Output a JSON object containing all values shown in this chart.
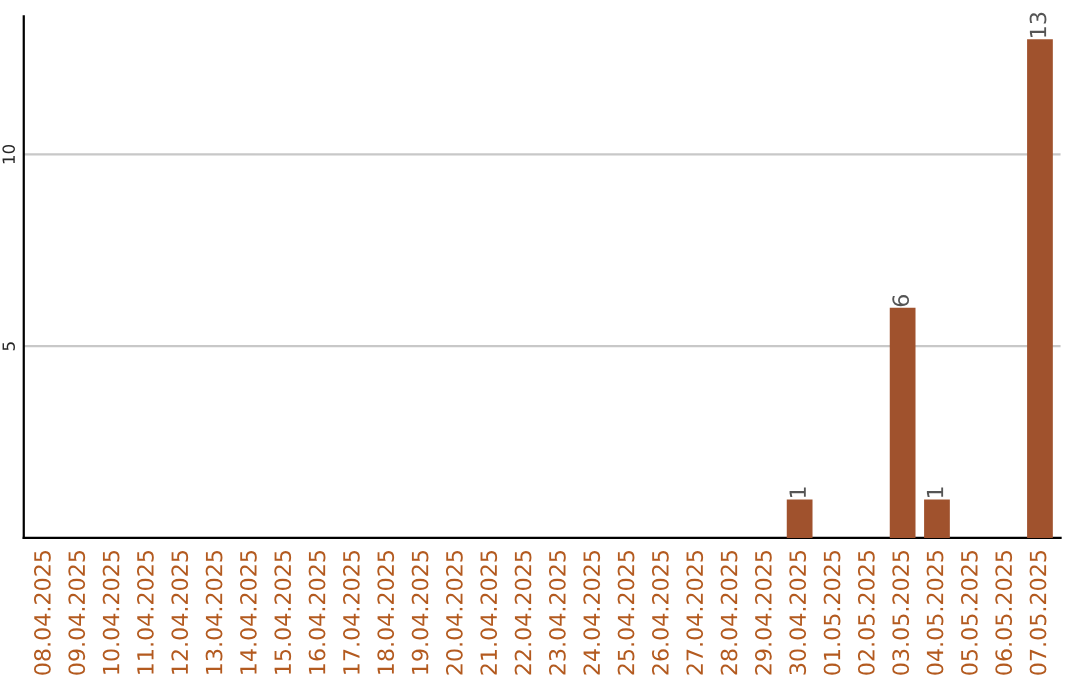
{
  "chart_data": {
    "type": "bar",
    "categories": [
      "08.04.2025",
      "09.04.2025",
      "10.04.2025",
      "11.04.2025",
      "12.04.2025",
      "13.04.2025",
      "14.04.2025",
      "15.04.2025",
      "16.04.2025",
      "17.04.2025",
      "18.04.2025",
      "19.04.2025",
      "20.04.2025",
      "21.04.2025",
      "22.04.2025",
      "23.04.2025",
      "24.04.2025",
      "25.04.2025",
      "26.04.2025",
      "27.04.2025",
      "28.04.2025",
      "29.04.2025",
      "30.04.2025",
      "01.05.2025",
      "02.05.2025",
      "03.05.2025",
      "04.05.2025",
      "05.05.2025",
      "06.05.2025",
      "07.05.2025"
    ],
    "values": [
      0,
      0,
      0,
      0,
      0,
      0,
      0,
      0,
      0,
      0,
      0,
      0,
      0,
      0,
      0,
      0,
      0,
      0,
      0,
      0,
      0,
      0,
      1,
      0,
      0,
      6,
      1,
      0,
      0,
      13
    ],
    "value_labels": [
      null,
      null,
      null,
      null,
      null,
      null,
      null,
      null,
      null,
      null,
      null,
      null,
      null,
      null,
      null,
      null,
      null,
      null,
      null,
      null,
      null,
      null,
      "1",
      null,
      null,
      "6",
      "1",
      null,
      null,
      "13"
    ],
    "color": "#a0522d",
    "ylim": [
      0,
      13.6
    ],
    "yticks": [
      5,
      10
    ],
    "grid": "y"
  }
}
